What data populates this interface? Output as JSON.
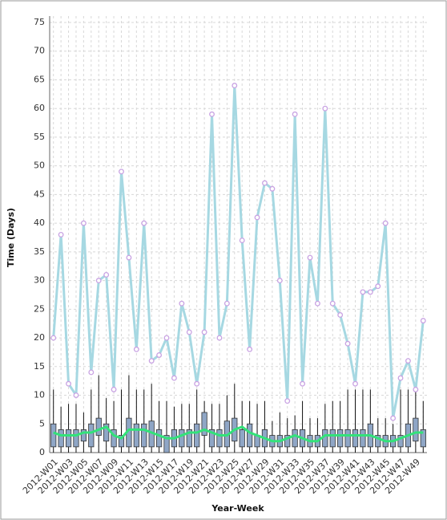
{
  "chart_data": {
    "type": "box-line",
    "x_label": "Year-Week",
    "y_label": "Time (Days)",
    "categories": [
      "2012-W01",
      null,
      "2012-W03",
      null,
      "2012-W05",
      null,
      "2012-W07",
      null,
      "2012-W09",
      null,
      "2012-W11",
      null,
      "2012-W13",
      null,
      "2012-W15",
      null,
      "2012-W17",
      null,
      "2012-W19",
      null,
      "2012-W21",
      null,
      "2012-W23",
      null,
      "2012-W25",
      null,
      "2012-W27",
      null,
      "2012-W29",
      null,
      "2012-W31",
      null,
      "2012-W33",
      null,
      "2012-W35",
      null,
      "2012-W37",
      null,
      "2012-W39",
      null,
      "2012-W41",
      null,
      "2012-W43",
      null,
      "2012-W45",
      null,
      "2012-W47",
      null,
      "2012-W49",
      null
    ],
    "ylim": [
      0,
      75
    ],
    "yticks": [
      0,
      5,
      10,
      15,
      20,
      25,
      30,
      35,
      40,
      45,
      50,
      55,
      60,
      65,
      70,
      75
    ],
    "grid": true,
    "boxes": {
      "color": "#8fa6c6",
      "low": [
        0,
        0,
        0,
        0,
        0,
        0,
        0,
        0,
        0,
        0,
        0,
        0,
        0,
        0,
        0,
        0,
        0,
        0,
        0,
        0,
        0,
        0,
        0,
        0,
        0,
        0,
        0,
        0,
        0,
        0,
        0,
        0,
        0,
        0,
        0,
        0,
        0,
        0,
        0,
        0,
        0,
        0,
        0,
        0,
        0,
        0,
        0,
        0,
        0,
        0
      ],
      "q1": [
        1,
        1,
        1,
        1,
        2,
        1,
        3,
        2,
        1,
        1,
        1,
        1,
        1,
        1,
        1,
        0,
        1,
        1,
        1,
        1,
        3,
        1,
        1,
        1,
        2,
        1,
        1,
        1,
        1,
        1,
        1,
        1,
        1,
        1,
        1,
        1,
        1,
        1,
        1,
        1,
        1,
        1,
        1,
        1,
        1,
        1,
        1,
        1,
        2,
        1
      ],
      "q3": [
        5,
        4,
        4,
        4,
        4,
        5,
        6,
        5,
        4,
        3,
        6,
        5,
        5,
        5.5,
        4,
        3,
        4,
        4,
        4,
        5,
        7,
        4,
        4,
        5.5,
        6,
        4,
        5,
        3,
        4,
        3,
        3,
        3,
        4,
        4,
        3,
        3,
        4,
        4,
        4,
        4,
        4,
        4,
        5,
        3,
        3,
        3,
        3,
        5,
        6,
        4
      ],
      "high": [
        11,
        8,
        8.5,
        8.5,
        7,
        11,
        13.5,
        9.5,
        9,
        11,
        13.5,
        11,
        11,
        12,
        9,
        9,
        8,
        8.5,
        8.5,
        11,
        9,
        8.5,
        8.5,
        10,
        12,
        9,
        9,
        8.5,
        9,
        5.5,
        7,
        6,
        6.5,
        9,
        6,
        6,
        8.5,
        9,
        9,
        11,
        11,
        11,
        11,
        6,
        6,
        5,
        11,
        11,
        11,
        9
      ]
    },
    "line_max": {
      "color": "#a6d8e2",
      "marker_color": "#c9a3e3",
      "values": [
        20,
        38,
        12,
        10,
        40,
        14,
        30,
        31,
        11,
        49,
        34,
        18,
        40,
        16,
        17,
        20,
        13,
        26,
        21,
        12,
        21,
        59,
        20,
        26,
        64,
        37,
        18,
        41,
        47,
        46,
        30,
        9,
        59,
        12,
        34,
        26,
        60,
        26,
        24,
        19,
        12,
        28,
        28,
        29,
        40,
        6,
        13,
        16,
        11,
        23
      ]
    },
    "line_center": {
      "color": "#33e27a",
      "values": [
        3.5,
        3,
        3,
        3,
        3.5,
        3.5,
        4,
        4.5,
        3,
        2.5,
        4,
        4,
        4,
        3.5,
        3,
        2.5,
        2.5,
        3,
        3.5,
        3.5,
        4,
        3.5,
        3,
        3,
        4,
        4.5,
        3.5,
        3,
        2.5,
        2,
        2,
        2.5,
        3,
        2.5,
        2,
        2,
        3,
        3,
        3,
        3,
        3,
        3,
        3,
        2.5,
        2,
        2,
        2.5,
        3,
        3.5,
        3.5
      ]
    }
  }
}
